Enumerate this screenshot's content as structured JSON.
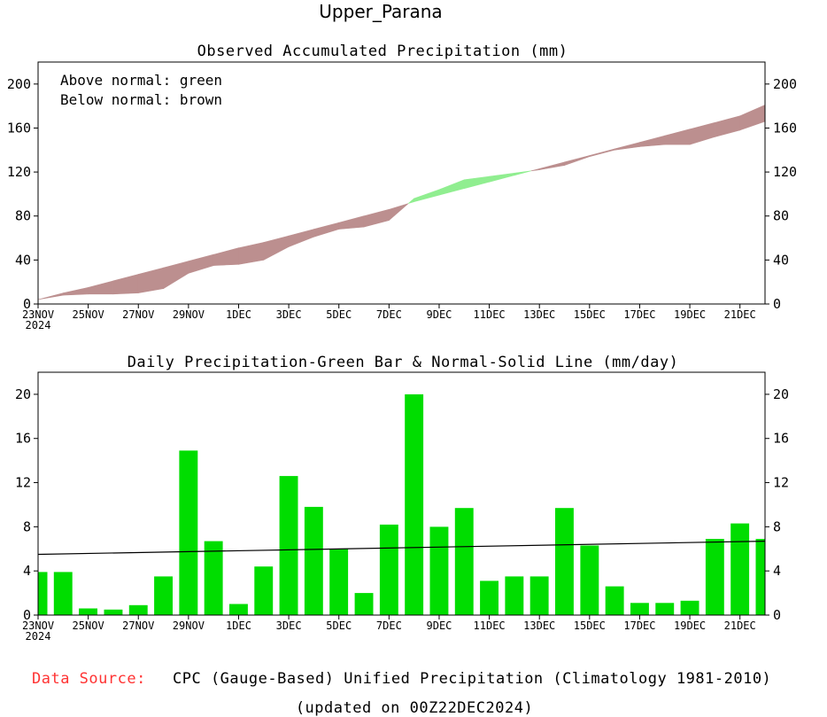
{
  "header": {
    "title": "Upper_Parana"
  },
  "footer": {
    "source_label": "Data Source:",
    "source_text": "CPC (Gauge-Based) Unified Precipitation (Climatology 1981-2010)",
    "updated": "(updated on 00Z22DEC2024)"
  },
  "colors": {
    "above": "#90ee90",
    "below": "#bc8f8f",
    "bar": "#00dd00",
    "source_label": "#ff3333"
  },
  "chart_data": [
    {
      "type": "area",
      "title": "Observed Accumulated Precipitation (mm)",
      "legend": [
        "Above normal: green",
        "Below normal: brown"
      ],
      "legend_position": "top-left",
      "x_day_range": [
        0,
        29
      ],
      "ylim": [
        0,
        220
      ],
      "yticks": [
        "0",
        "40",
        "80",
        "120",
        "160",
        "200"
      ],
      "ytick_values": [
        0,
        40,
        80,
        120,
        160,
        200
      ],
      "xtick_days": [
        0,
        2,
        4,
        6,
        8,
        10,
        12,
        14,
        16,
        18,
        20,
        22,
        24,
        26,
        28
      ],
      "xtick_labels": [
        "23NOV",
        "25NOV",
        "27NOV",
        "29NOV",
        "1DEC",
        "3DEC",
        "5DEC",
        "7DEC",
        "9DEC",
        "11DEC",
        "13DEC",
        "15DEC",
        "17DEC",
        "19DEC",
        "21DEC"
      ],
      "year_label": "2024",
      "days": [
        0,
        1,
        2,
        3,
        4,
        5,
        6,
        7,
        8,
        9,
        10,
        11,
        12,
        13,
        14,
        15,
        16,
        17,
        18,
        19,
        20,
        21,
        22,
        23,
        24,
        25,
        26,
        27,
        28,
        29
      ],
      "observed": [
        4,
        8,
        9,
        9,
        10,
        14,
        28,
        35,
        36,
        40,
        52,
        61,
        68,
        70,
        76,
        96,
        104,
        113,
        116,
        119,
        122,
        126,
        134,
        140,
        143,
        145,
        145,
        152,
        158,
        166
      ],
      "normal": [
        4,
        10,
        15,
        21,
        27,
        33,
        39,
        45,
        51,
        56,
        62,
        68,
        74,
        80,
        86,
        93,
        99,
        105,
        111,
        117,
        123,
        129,
        135,
        141,
        147,
        153,
        159,
        165,
        171,
        181
      ]
    },
    {
      "type": "bar",
      "title": "Daily Precipitation-Green Bar & Normal-Solid Line (mm/day)",
      "x_day_range": [
        0,
        29
      ],
      "ylim": [
        0,
        22
      ],
      "yticks": [
        "0",
        "4",
        "8",
        "12",
        "16",
        "20"
      ],
      "ytick_values": [
        0,
        4,
        8,
        12,
        16,
        20
      ],
      "xtick_days": [
        0,
        2,
        4,
        6,
        8,
        10,
        12,
        14,
        16,
        18,
        20,
        22,
        24,
        26,
        28
      ],
      "xtick_labels": [
        "23NOV",
        "25NOV",
        "27NOV",
        "29NOV",
        "1DEC",
        "3DEC",
        "5DEC",
        "7DEC",
        "9DEC",
        "11DEC",
        "13DEC",
        "15DEC",
        "17DEC",
        "19DEC",
        "21DEC"
      ],
      "year_label": "2024",
      "days": [
        0,
        1,
        2,
        3,
        4,
        5,
        6,
        7,
        8,
        9,
        10,
        11,
        12,
        13,
        14,
        15,
        16,
        17,
        18,
        19,
        20,
        21,
        22,
        23,
        24,
        25,
        26,
        27,
        28,
        29
      ],
      "values": [
        3.9,
        3.9,
        0.6,
        0.5,
        0.9,
        3.5,
        14.9,
        6.7,
        1.0,
        4.4,
        12.6,
        9.8,
        6.0,
        2.0,
        8.2,
        20.0,
        8.0,
        9.7,
        3.1,
        3.5,
        3.5,
        9.7,
        6.3,
        2.6,
        1.1,
        1.1,
        1.3,
        6.9,
        8.3,
        6.9
      ],
      "normal_line": {
        "start": 5.5,
        "end": 6.7
      }
    }
  ]
}
